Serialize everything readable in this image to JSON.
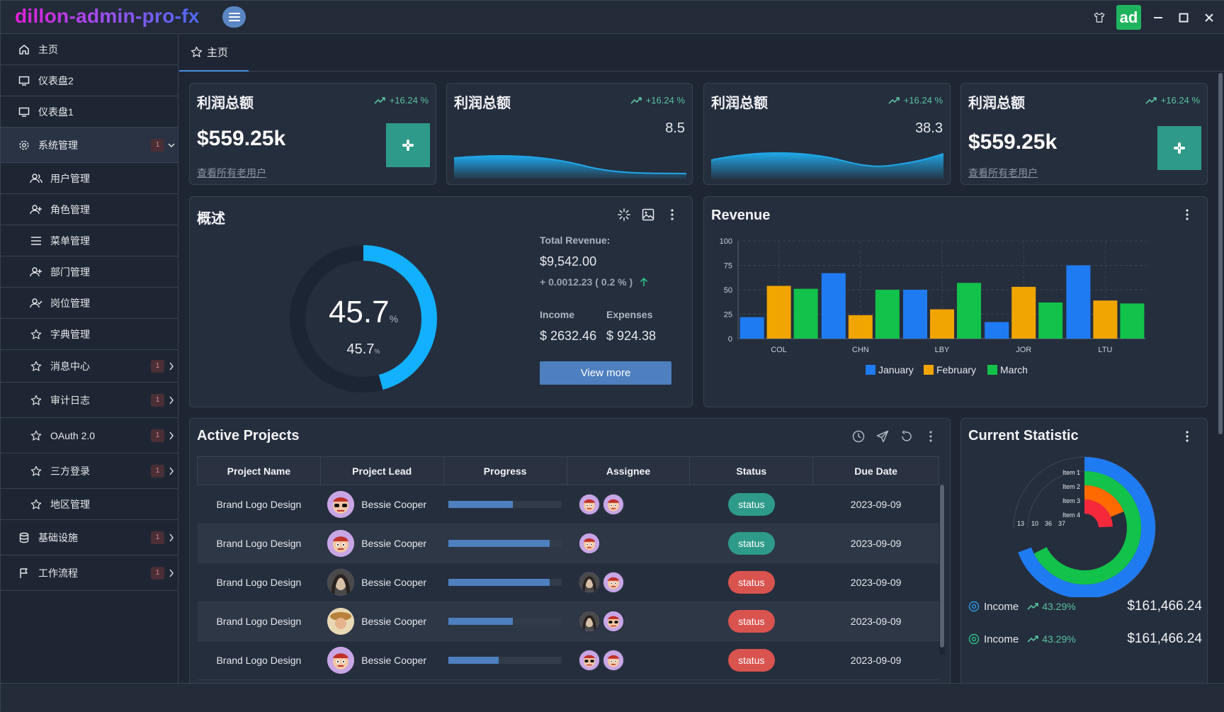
{
  "app": {
    "title": "dillon-admin-pro-fx",
    "avatar": "ad"
  },
  "colors": {
    "accent": "#4e7fbf",
    "teal": "#2e9a8a",
    "success": "#58c2a0",
    "status_ok": "#2e9a8a",
    "status_bad": "#d9534f"
  },
  "sidebar": {
    "items": [
      {
        "label": "主页",
        "icon": "home-icon"
      },
      {
        "label": "仪表盘2",
        "icon": "monitor-icon"
      },
      {
        "label": "仪表盘1",
        "icon": "monitor-icon"
      },
      {
        "label": "系统管理",
        "icon": "gear-icon",
        "badge": "1"
      },
      {
        "label": "用户管理",
        "icon": "users-icon"
      },
      {
        "label": "角色管理",
        "icon": "user-plus-icon"
      },
      {
        "label": "菜单管理",
        "icon": "menu-icon"
      },
      {
        "label": "部门管理",
        "icon": "user-plus-icon"
      },
      {
        "label": "岗位管理",
        "icon": "user-check-icon"
      },
      {
        "label": "字典管理",
        "icon": "star-icon"
      },
      {
        "label": "消息中心",
        "icon": "star-icon",
        "badge": "1"
      },
      {
        "label": "审计日志",
        "icon": "star-icon",
        "badge": "1"
      },
      {
        "label": "OAuth 2.0",
        "icon": "star-icon",
        "badge": "1"
      },
      {
        "label": "三方登录",
        "icon": "star-icon",
        "badge": "1"
      },
      {
        "label": "地区管理",
        "icon": "star-icon"
      },
      {
        "label": "基础设施",
        "icon": "database-icon",
        "badge": "1"
      },
      {
        "label": "工作流程",
        "icon": "flag-icon",
        "badge": "1"
      }
    ]
  },
  "tabs": [
    {
      "label": "主页"
    }
  ],
  "stat_cards": [
    {
      "title": "利润总额",
      "trend": "+16.24 %",
      "value": "$559.25k",
      "link": "查看所有老用户"
    },
    {
      "title": "利润总额",
      "trend": "+16.24 %",
      "value": "8.5"
    },
    {
      "title": "利润总额",
      "trend": "+16.24 %",
      "value": "38.3"
    },
    {
      "title": "利润总额",
      "trend": "+16.24 %",
      "value": "$559.25k",
      "link": "查看所有老用户"
    }
  ],
  "overview": {
    "title": "概述",
    "gauge_value": "45.7",
    "gauge_sub": "45.7",
    "gauge_unit": "%",
    "gauge_fraction": 0.457,
    "total_label": "Total Revenue:",
    "total_value": "$9,542.00",
    "delta": "+ 0.0012.23 ( 0.2 % )",
    "income_label": "Income",
    "expenses_label": "Expenses",
    "income_value": "$ 2632.46",
    "expenses_value": "$ 924.38",
    "button": "View more"
  },
  "revenue": {
    "title": "Revenue"
  },
  "chart_data": [
    {
      "type": "bar",
      "title": "Revenue",
      "categories": [
        "COL",
        "CHN",
        "LBY",
        "JOR",
        "LTU"
      ],
      "series": [
        {
          "name": "January",
          "values": [
            22,
            67,
            50,
            17,
            75
          ],
          "color": "#1f7bf2"
        },
        {
          "name": "February",
          "values": [
            54,
            24,
            30,
            53,
            39
          ],
          "color": "#f0a500"
        },
        {
          "name": "March",
          "values": [
            51,
            50,
            57,
            37,
            36
          ],
          "color": "#12c24a"
        }
      ],
      "ylim": [
        0,
        100
      ],
      "yticks": [
        "0",
        "25",
        "50",
        "75",
        "100"
      ],
      "grid": true,
      "legend": "bottom"
    },
    {
      "type": "radial-bar",
      "title": "Current Statistic",
      "categories": [
        "Item 1",
        "Item 2",
        "Item 3",
        "Item 4"
      ],
      "values": [
        37,
        36,
        10,
        13
      ],
      "axis_labels": [
        "13",
        "10",
        "36",
        "37"
      ],
      "colors": [
        "#1f7bf2",
        "#12c24a",
        "#ff6a00",
        "#f5283c"
      ]
    }
  ],
  "projects": {
    "title": "Active Projects",
    "columns": [
      "Project Name",
      "Project Lead",
      "Progress",
      "Assignee",
      "Status",
      "Due Date"
    ],
    "rows": [
      {
        "name": "Brand Logo Design",
        "lead": "Bessie Cooper",
        "progress": 0.57,
        "status": "status",
        "ok": true,
        "due": "2023-09-09",
        "assignees": 2
      },
      {
        "name": "Brand Logo Design",
        "lead": "Bessie Cooper",
        "progress": 0.89,
        "status": "status",
        "ok": true,
        "due": "2023-09-09",
        "assignees": 1
      },
      {
        "name": "Brand Logo Design",
        "lead": "Bessie Cooper",
        "progress": 0.89,
        "status": "status",
        "ok": false,
        "due": "2023-09-09",
        "assignees": 2
      },
      {
        "name": "Brand Logo Design",
        "lead": "Bessie Cooper",
        "progress": 0.57,
        "status": "status",
        "ok": false,
        "due": "2023-09-09",
        "assignees": 2
      },
      {
        "name": "Brand Logo Design",
        "lead": "Bessie Cooper",
        "progress": 0.44,
        "status": "status",
        "ok": false,
        "due": "2023-09-09",
        "assignees": 2
      }
    ]
  },
  "current_statistic": {
    "title": "Current Statistic",
    "rows": [
      {
        "label": "Income",
        "trend": "43.29%",
        "amount": "$161,466.24"
      },
      {
        "label": "Income",
        "trend": "43.29%",
        "amount": "$161,466.24"
      }
    ]
  }
}
